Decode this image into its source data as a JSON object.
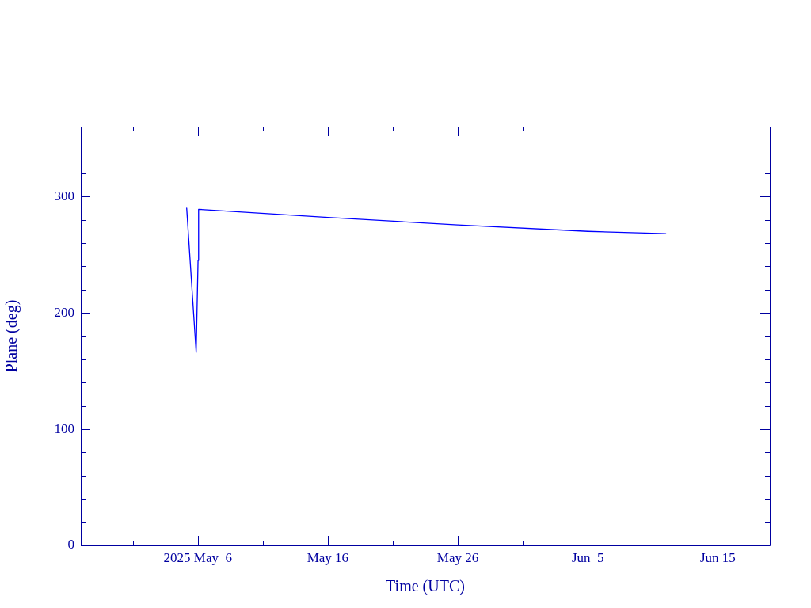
{
  "chart_data": {
    "type": "line",
    "xlabel": "Time (UTC)",
    "ylabel": "Plane (deg)",
    "x": [
      "2025-05-05T03:30",
      "2025-05-05T21:00",
      "2025-05-06T00:30",
      "2025-05-06T01:30",
      "2025-05-16",
      "2025-05-26",
      "2025-06-05",
      "2025-06-11"
    ],
    "series": [
      {
        "color": "#0000ff",
        "values": [
          290,
          166,
          245,
          289,
          282,
          275.5,
          270,
          268
        ]
      }
    ],
    "xlim": [
      "2025-04-27",
      "2025-06-19"
    ],
    "xticks": [
      {
        "value": "2025-05-01",
        "label": null
      },
      {
        "value": "2025-05-06",
        "label": "2025 May  6"
      },
      {
        "value": "2025-05-11",
        "label": null
      },
      {
        "value": "2025-05-16",
        "label": "May 16"
      },
      {
        "value": "2025-05-21",
        "label": null
      },
      {
        "value": "2025-05-26",
        "label": "May 26"
      },
      {
        "value": "2025-05-31",
        "label": null
      },
      {
        "value": "2025-06-05",
        "label": "Jun  5"
      },
      {
        "value": "2025-06-10",
        "label": null
      },
      {
        "value": "2025-06-15",
        "label": "Jun 15"
      }
    ],
    "ylim": [
      0,
      360
    ],
    "yticks": [
      0,
      {
        "value": 20,
        "label": null
      },
      {
        "value": 40,
        "label": null
      },
      {
        "value": 60,
        "label": null
      },
      {
        "value": 80,
        "label": null
      },
      100,
      {
        "value": 120,
        "label": null
      },
      {
        "value": 140,
        "label": null
      },
      {
        "value": 160,
        "label": null
      },
      {
        "value": 180,
        "label": null
      },
      200,
      {
        "value": 220,
        "label": null
      },
      {
        "value": 240,
        "label": null
      },
      {
        "value": 260,
        "label": null
      },
      {
        "value": 280,
        "label": null
      },
      300,
      {
        "value": 320,
        "label": null
      },
      {
        "value": 340,
        "label": null
      }
    ],
    "grid": false,
    "legend": false,
    "marker": "none",
    "line_style": "solid"
  }
}
